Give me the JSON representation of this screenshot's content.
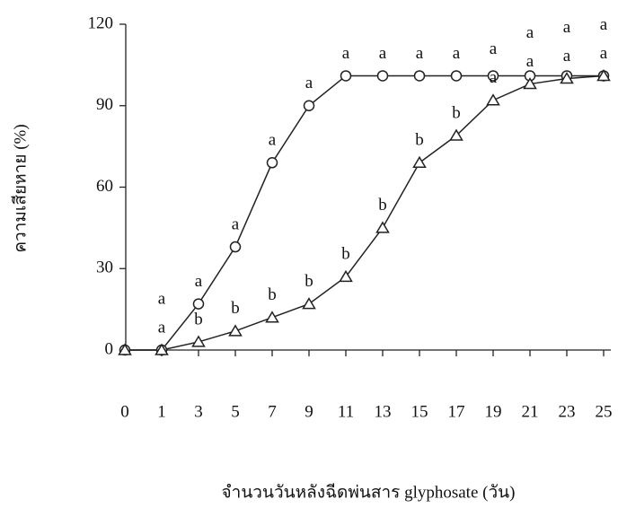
{
  "chart_data": {
    "type": "line",
    "y_label": "ความเสียหาย (%)",
    "x_label": "จำนวนวันหลังฉีดพ่นสาร glyphosate (วัน)",
    "categories": [
      "0",
      "1",
      "3",
      "5",
      "7",
      "9",
      "11",
      "13",
      "15",
      "17",
      "19",
      "21",
      "23",
      "25"
    ],
    "series": [
      {
        "marker": "circle",
        "color": "#222222",
        "values": [
          0,
          0,
          17,
          38,
          69,
          90,
          101,
          101,
          101,
          101,
          101,
          101,
          101,
          101
        ],
        "labels": [
          null,
          "a",
          "a",
          "a",
          "a",
          "a",
          "a",
          "a",
          "a",
          "a",
          "a",
          "a",
          "a",
          "a"
        ]
      },
      {
        "marker": "triangle",
        "color": "#222222",
        "values": [
          0,
          0,
          3,
          7,
          12,
          17,
          27,
          45,
          69,
          79,
          92,
          98,
          100,
          101
        ],
        "labels": [
          null,
          "a",
          "b",
          "b",
          "b",
          "b",
          "b",
          "b",
          "b",
          "b",
          "a",
          "a",
          "a",
          "a"
        ]
      }
    ],
    "ylim": [
      0,
      120
    ],
    "yticks": [
      0,
      30,
      60,
      90,
      120
    ]
  }
}
